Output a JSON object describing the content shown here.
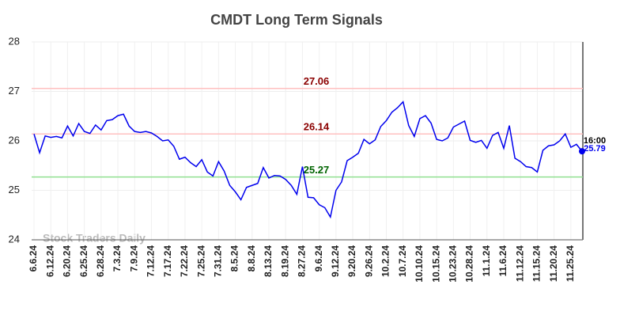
{
  "chart_data": {
    "type": "line",
    "title": "CMDT Long Term Signals",
    "watermark": "Stock Traders Daily",
    "last_time": "16:00",
    "color": "#0000ee",
    "categories": [
      "6.6.24",
      null,
      null,
      "6.12.24",
      null,
      null,
      "6.20.24",
      null,
      null,
      "6.25.24",
      null,
      null,
      "6.28.24",
      null,
      null,
      "7.3.24",
      null,
      null,
      "7.9.24",
      null,
      null,
      "7.12.24",
      null,
      null,
      "7.17.24",
      null,
      null,
      "7.22.24",
      null,
      null,
      "7.25.24",
      null,
      null,
      "7.31.24",
      null,
      null,
      "8.5.24",
      null,
      null,
      "8.8.24",
      null,
      null,
      "8.13.24",
      null,
      null,
      "8.19.24",
      null,
      null,
      "8.27.24",
      null,
      null,
      "9.6.24",
      null,
      null,
      "9.12.24",
      null,
      null,
      "9.20.24",
      null,
      null,
      "9.26.24",
      null,
      null,
      "10.2.24",
      null,
      null,
      "10.7.24",
      null,
      null,
      "10.10.24",
      null,
      null,
      "10.15.24",
      null,
      null,
      "10.23.24",
      null,
      null,
      "10.28.24",
      null,
      null,
      "11.1.24",
      null,
      null,
      "11.6.24",
      null,
      null,
      "11.12.24",
      null,
      null,
      "11.15.24",
      null,
      null,
      "11.20.24",
      null,
      null,
      "11.25.24",
      null,
      null
    ],
    "values": [
      26.14,
      25.76,
      26.1,
      26.07,
      26.09,
      26.06,
      26.3,
      26.1,
      26.35,
      26.19,
      26.15,
      26.32,
      26.22,
      26.41,
      26.43,
      26.51,
      26.54,
      26.3,
      26.19,
      26.17,
      26.19,
      26.16,
      26.09,
      26.0,
      26.02,
      25.89,
      25.63,
      25.67,
      25.56,
      25.48,
      25.62,
      25.37,
      25.29,
      25.58,
      25.39,
      25.1,
      24.97,
      24.81,
      25.06,
      25.1,
      25.14,
      25.46,
      25.25,
      25.3,
      25.29,
      25.22,
      25.1,
      24.92,
      25.48,
      24.86,
      24.85,
      24.71,
      24.65,
      24.46,
      25.0,
      25.17,
      25.6,
      25.67,
      25.75,
      26.03,
      25.94,
      26.02,
      26.29,
      26.41,
      26.58,
      26.67,
      26.79,
      26.31,
      26.09,
      26.45,
      26.51,
      26.36,
      26.03,
      26.0,
      26.06,
      26.28,
      26.34,
      26.4,
      26.01,
      25.97,
      26.01,
      25.85,
      26.11,
      26.17,
      25.85,
      26.31,
      25.65,
      25.58,
      25.48,
      25.46,
      25.37,
      25.81,
      25.9,
      25.92,
      26.0,
      26.14,
      25.87,
      25.93,
      25.79
    ],
    "signals": [
      {
        "value": 27.06,
        "color": "#ffc0c0",
        "label_color": "#8b0000"
      },
      {
        "value": 26.14,
        "color": "#ffc0c0",
        "label_color": "#8b0000"
      },
      {
        "value": 25.27,
        "color": "#90e090",
        "label_color": "#006400"
      }
    ],
    "ylim": [
      24,
      28
    ],
    "yticks": [
      24,
      25,
      26,
      27,
      28
    ],
    "grid": true
  }
}
